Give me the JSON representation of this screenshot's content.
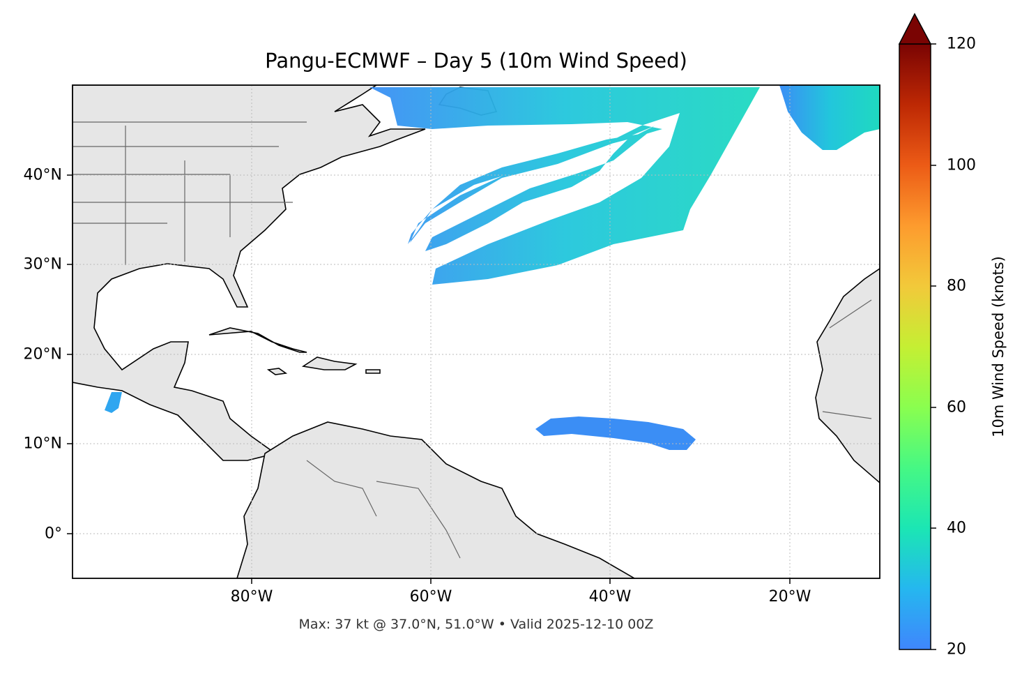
{
  "title": "Pangu-ECMWF – Day 5 (10m Wind Speed)",
  "footer": "Max: 37 kt @ 37.0°N, 51.0°W • Valid 2025-12-10 00Z",
  "map": {
    "lon_range": [
      -100,
      -10
    ],
    "lat_range": [
      -5,
      50
    ],
    "x_ticks": [
      {
        "value": -80,
        "label": "80°W"
      },
      {
        "value": -60,
        "label": "60°W"
      },
      {
        "value": -40,
        "label": "40°W"
      },
      {
        "value": -20,
        "label": "20°W"
      }
    ],
    "y_ticks": [
      {
        "value": 40,
        "label": "40°N"
      },
      {
        "value": 30,
        "label": "30°N"
      },
      {
        "value": 20,
        "label": "20°N"
      },
      {
        "value": 10,
        "label": "10°N"
      },
      {
        "value": 0,
        "label": "0°"
      }
    ],
    "gridlines": true,
    "land_color": "#e6e6e6",
    "coast_color": "#000000",
    "border_color": "#666666"
  },
  "colorbar": {
    "label": "10m Wind Speed (knots)",
    "range": [
      20,
      120
    ],
    "ticks": [
      "120",
      "100",
      "80",
      "60",
      "40",
      "20"
    ],
    "extend": "max",
    "colormap": "turbo"
  },
  "wind_features": [
    {
      "name": "north-atlantic-jet",
      "description_color": "#1fd9c0"
    },
    {
      "name": "trade-wind-band",
      "description_color": "#3b8ef5"
    }
  ]
}
